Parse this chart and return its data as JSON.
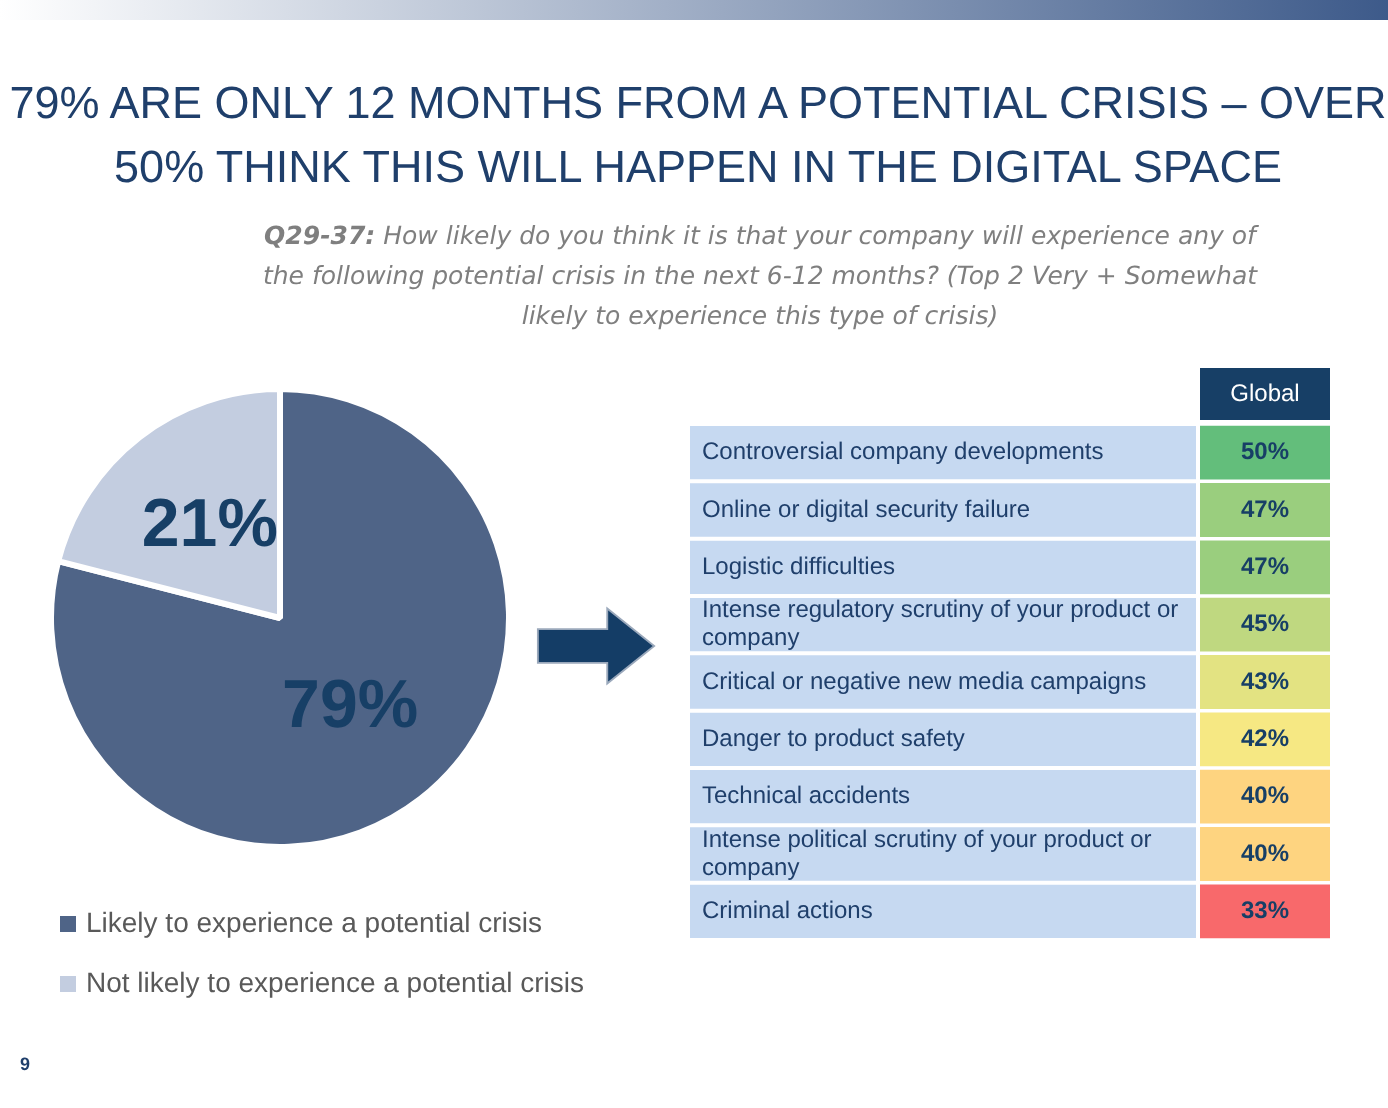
{
  "chart_data": [
    {
      "type": "pie",
      "title": "79% ARE ONLY 12 MONTHS FROM A POTENTIAL CRISIS – OVER 50% THINK THIS WILL HAPPEN IN THE DIGITAL SPACE",
      "subtitle": "Q29-37: How likely do you think it is that your company will experience any of the following potential crisis in the next 6-12 months? (Top 2 Very + Somewhat likely to experience this type of crisis)",
      "categories": [
        "Likely to experience a potential crisis",
        "Not likely to experience a potential crisis"
      ],
      "values": [
        79,
        21
      ],
      "value_labels": [
        "79%",
        "21%"
      ],
      "colors": [
        "#4f6487",
        "#c3cde0"
      ],
      "legend": "bottom",
      "annotations": [
        "9"
      ]
    },
    {
      "type": "heatmap",
      "categories": [
        "Global"
      ],
      "y_categories": [
        "Controversial company developments",
        "Online or digital security failure",
        "Logistic difficulties",
        "Intense regulatory scrutiny of your product or company",
        "Critical or negative new media campaigns",
        "Danger to product safety",
        "Technical accidents",
        "Intense political scrutiny of your product or company",
        "Criminal actions"
      ],
      "cells": [
        [
          50
        ],
        [
          47
        ],
        [
          47
        ],
        [
          45
        ],
        [
          43
        ],
        [
          42
        ],
        [
          40
        ],
        [
          40
        ],
        [
          33
        ]
      ],
      "cell_labels": [
        [
          "50%"
        ],
        [
          "47%"
        ],
        [
          "47%"
        ],
        [
          "45%"
        ],
        [
          "43%"
        ],
        [
          "42%"
        ],
        [
          "40%"
        ],
        [
          "40%"
        ],
        [
          "33%"
        ]
      ]
    }
  ]
}
